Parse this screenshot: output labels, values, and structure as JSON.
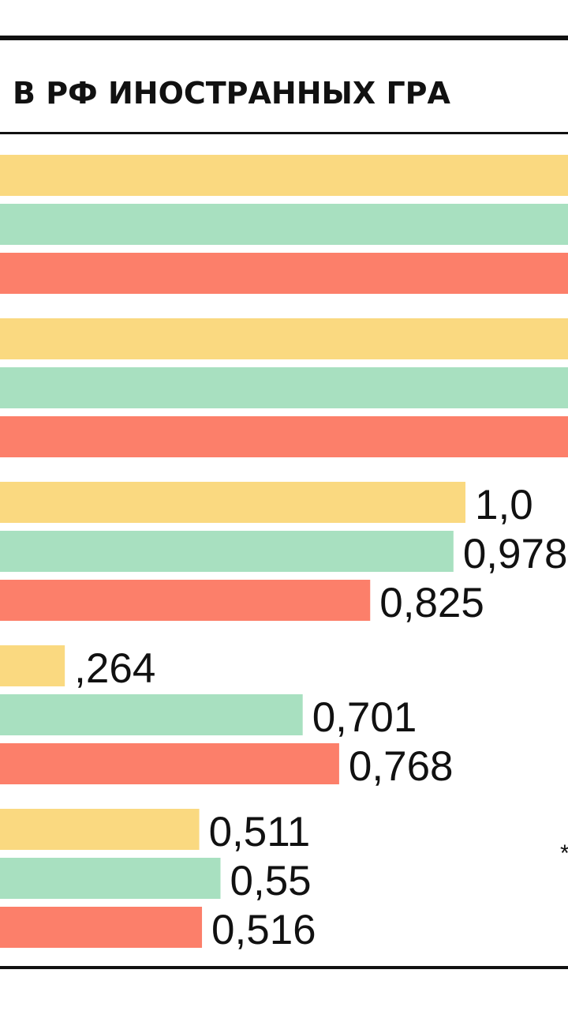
{
  "chart_data": {
    "type": "bar",
    "orientation": "horizontal",
    "title": "В РФ ИНОСТРАННЫХ ГРА",
    "footnote_mark": "*",
    "colors": [
      "#FAD980",
      "#A8E0C0",
      "#FC7F6A"
    ],
    "groups": [
      {
        "values": [
          null,
          null,
          null
        ],
        "labels": [
          "",
          "",
          ""
        ]
      },
      {
        "values": [
          null,
          null,
          null
        ],
        "labels": [
          "",
          "",
          ""
        ]
      },
      {
        "values": [
          1.0,
          0.978,
          0.825
        ],
        "labels": [
          "1,0",
          "0,978",
          "0,825"
        ]
      },
      {
        "values": [
          0.264,
          0.701,
          0.768
        ],
        "labels": [
          ",264",
          "0,701",
          "0,768"
        ]
      },
      {
        "values": [
          0.511,
          0.55,
          0.516
        ],
        "labels": [
          "0,511",
          "0,55",
          "0,516"
        ]
      }
    ]
  }
}
